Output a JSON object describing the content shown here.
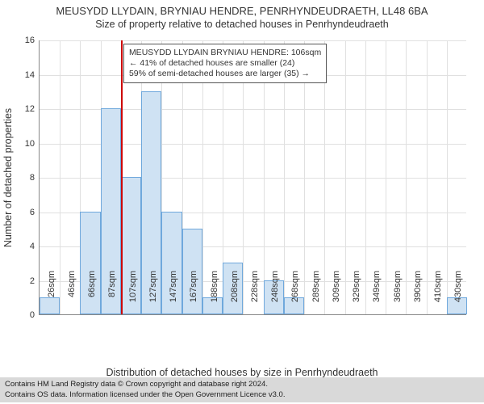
{
  "title": "MEUSYDD LLYDAIN, BRYNIAU HENDRE, PENRHYNDEUDRAETH, LL48 6BA",
  "subtitle": "Size of property relative to detached houses in Penrhyndeudraeth",
  "chart": {
    "type": "bar",
    "ylabel": "Number of detached properties",
    "xlabel": "Distribution of detached houses by size in Penrhyndeudraeth",
    "ylim_max": 16,
    "ytick_step": 2,
    "x_categories": [
      "26sqm",
      "46sqm",
      "66sqm",
      "87sqm",
      "107sqm",
      "127sqm",
      "147sqm",
      "167sqm",
      "188sqm",
      "208sqm",
      "228sqm",
      "248sqm",
      "268sqm",
      "289sqm",
      "309sqm",
      "329sqm",
      "349sqm",
      "369sqm",
      "390sqm",
      "410sqm",
      "430sqm"
    ],
    "bar_values": [
      1,
      0,
      6,
      12,
      8,
      13,
      6,
      5,
      1,
      3,
      0,
      2,
      1,
      0,
      0,
      0,
      0,
      0,
      0,
      0,
      1
    ],
    "bar_fill": "#cfe2f3",
    "bar_border": "#6fa8dc",
    "bar_width_ratio": 1.0,
    "background": "#ffffff",
    "grid_color": "#e0e0e0",
    "axis_color": "#888888",
    "marker_index": 4,
    "marker_color": "#cc0000",
    "label_fontsize": 12.5,
    "tick_fontsize": 11,
    "title_fontsize": 13
  },
  "annotation": {
    "line1": "MEUSYDD LLYDAIN BRYNIAU HENDRE: 106sqm",
    "line2": "← 41% of detached houses are smaller (24)",
    "line3": "59% of semi-detached houses are larger (35) →",
    "border_color": "#555555",
    "bg": "#ffffff",
    "fontsize": 10.5
  },
  "footer": {
    "line1": "Contains HM Land Registry data © Crown copyright and database right 2024.",
    "line2": "Contains OS data. Information licensed under the Open Government Licence v3.0.",
    "bg": "#d9d9d9",
    "fontsize": 9.5
  }
}
